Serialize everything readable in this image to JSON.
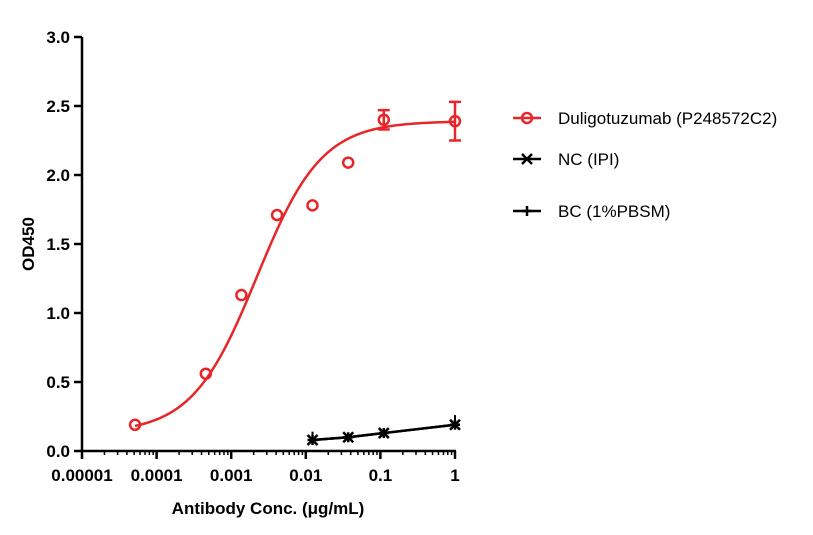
{
  "chart_data": {
    "type": "scatter",
    "title": "",
    "xlabel": "Antibody Conc. (μg/mL)",
    "ylabel": "OD450",
    "xscale": "log",
    "xlim": [
      1e-05,
      1
    ],
    "ylim": [
      0,
      3.0
    ],
    "xticks": [
      "0.00001",
      "0.0001",
      "0.001",
      "0.01",
      "0.1",
      "1"
    ],
    "yticks": [
      "0.0",
      "0.5",
      "1.0",
      "1.5",
      "2.0",
      "2.5",
      "3.0"
    ],
    "grid": false,
    "legend_position": "right",
    "series": [
      {
        "name": "Duligotuzumab (P248572C2)",
        "color": "#e8262a",
        "marker": "circle",
        "fit": "4PL",
        "fit_params": {
          "bottom": 0.13,
          "top": 2.39,
          "ec50": 0.0022,
          "hill": 1.0
        },
        "x": [
          5.14e-05,
          0.000457,
          0.00137,
          0.00412,
          0.0123,
          0.037,
          0.111,
          1
        ],
        "y": [
          0.19,
          0.56,
          1.13,
          1.71,
          1.78,
          2.09,
          2.4,
          2.39
        ],
        "err": [
          0,
          0,
          0,
          0,
          0,
          0,
          0.07,
          0.14
        ]
      },
      {
        "name": "NC (IPI)",
        "color": "#000000",
        "marker": "x",
        "x": [
          0.0123,
          0.037,
          0.111,
          1
        ],
        "y": [
          0.08,
          0.1,
          0.13,
          0.19
        ]
      },
      {
        "name": "BC (1%PBSM)",
        "color": "#000000",
        "marker": "plus",
        "x": [
          0.0123,
          0.037,
          0.111,
          1
        ],
        "y": [
          0.08,
          0.1,
          0.13,
          0.19
        ],
        "err": [
          0.06,
          0,
          0,
          0.07
        ]
      }
    ]
  }
}
